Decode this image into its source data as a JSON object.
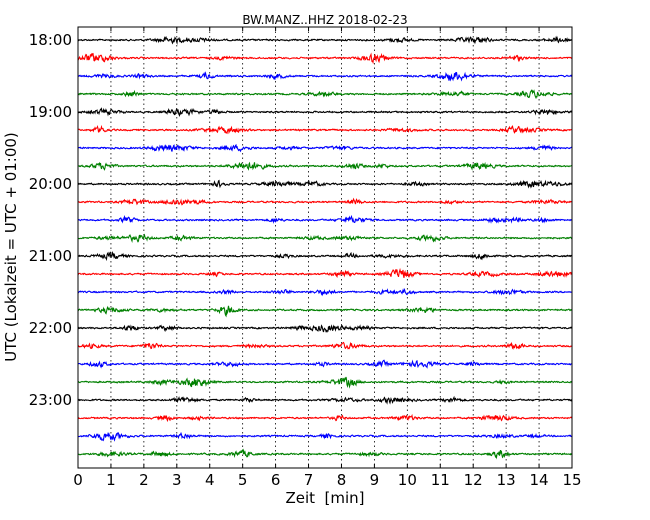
{
  "chart_data": {
    "type": "line",
    "title": "BW.MANZ..HHZ 2018-02-23",
    "xlabel": "Zeit  [min]",
    "ylabel": "UTC (Lokalzeit = UTC + 01:00)",
    "xlim": [
      0,
      15
    ],
    "x_ticks": [
      "0",
      "1",
      "2",
      "3",
      "4",
      "5",
      "6",
      "7",
      "8",
      "9",
      "10",
      "11",
      "12",
      "13",
      "14",
      "15"
    ],
    "y_tick_labels": [
      "18:00",
      "19:00",
      "20:00",
      "21:00",
      "22:00",
      "23:00"
    ],
    "grid": "vertical dotted lines at each minute",
    "trace_count": 24,
    "trace_minutes": 15,
    "trace_colors": [
      "#000000",
      "#ff0000",
      "#0000ff",
      "#008000"
    ],
    "series": [
      {
        "start": "18:00"
      },
      {
        "start": "18:15"
      },
      {
        "start": "18:30"
      },
      {
        "start": "18:45"
      },
      {
        "start": "19:00"
      },
      {
        "start": "19:15"
      },
      {
        "start": "19:30"
      },
      {
        "start": "19:45"
      },
      {
        "start": "20:00"
      },
      {
        "start": "20:15"
      },
      {
        "start": "20:30"
      },
      {
        "start": "20:45"
      },
      {
        "start": "21:00"
      },
      {
        "start": "21:15"
      },
      {
        "start": "21:30"
      },
      {
        "start": "21:45"
      },
      {
        "start": "22:00"
      },
      {
        "start": "22:15"
      },
      {
        "start": "22:30"
      },
      {
        "start": "22:45"
      },
      {
        "start": "23:00"
      },
      {
        "start": "23:15"
      },
      {
        "start": "23:30"
      },
      {
        "start": "23:45"
      }
    ]
  }
}
